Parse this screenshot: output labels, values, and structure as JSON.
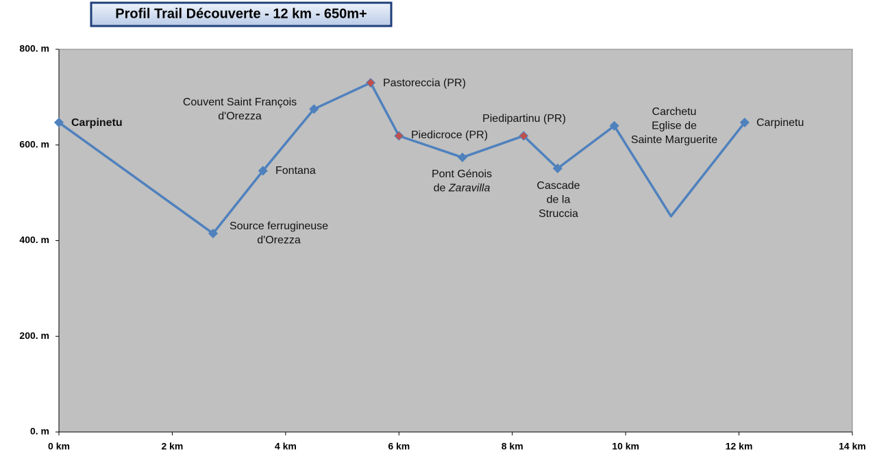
{
  "chart_data": {
    "type": "line",
    "title": "Profil Trail Découverte - 12 km - 650m+",
    "x": [
      0,
      2.72,
      3.6,
      4.5,
      5.5,
      6.0,
      7.12,
      8.2,
      8.8,
      9.8,
      10.8,
      12.1
    ],
    "series": [
      {
        "color": "#4f81bd",
        "values": [
          647,
          415,
          546,
          675,
          730,
          619,
          574,
          619,
          551,
          640,
          451,
          647
        ],
        "marker_colors": [
          "#4f81bd",
          "#4f81bd",
          "#4f81bd",
          "#4f81bd",
          "#c0504d",
          "#c0504d",
          "#4f81bd",
          "#c0504d",
          "#4f81bd",
          "#4f81bd",
          null,
          "#4f81bd"
        ],
        "point_labels": [
          [
            "Carpinetu"
          ],
          [
            "Source ferrugineuse",
            "d'Orezza"
          ],
          [
            "Fontana"
          ],
          [
            "Couvent Saint François",
            "d'Orezza"
          ],
          [
            "Pastoreccia (PR)"
          ],
          [
            "Piedicroce (PR)"
          ],
          [
            "Pont Génois",
            [
              "de ",
              "Zaravilla"
            ]
          ],
          [
            "Piedipartinu (PR)"
          ],
          [
            "Cascade",
            "de la",
            "Struccia"
          ],
          null,
          [
            "Carchetu",
            "Eglise de",
            "Sainte Marguerite"
          ],
          [
            "Carpinetu"
          ]
        ]
      }
    ],
    "xlim": [
      0,
      14
    ],
    "xticks": [
      {
        "value": 0,
        "label": "0 km"
      },
      {
        "value": 2,
        "label": "2 km"
      },
      {
        "value": 4,
        "label": "4 km"
      },
      {
        "value": 6,
        "label": "6 km"
      },
      {
        "value": 8,
        "label": "8 km"
      },
      {
        "value": 10,
        "label": "10 km"
      },
      {
        "value": 12,
        "label": "12 km"
      },
      {
        "value": 14,
        "label": "14 km"
      }
    ],
    "ylim": [
      0,
      800
    ],
    "yticks": [
      {
        "value": 0,
        "label": "0. m"
      },
      {
        "value": 200,
        "label": "200. m"
      },
      {
        "value": 400,
        "label": "400. m"
      },
      {
        "value": 600,
        "label": "600. m"
      },
      {
        "value": 800,
        "label": "800. m"
      }
    ],
    "plot_background": "#c0c0c0"
  }
}
